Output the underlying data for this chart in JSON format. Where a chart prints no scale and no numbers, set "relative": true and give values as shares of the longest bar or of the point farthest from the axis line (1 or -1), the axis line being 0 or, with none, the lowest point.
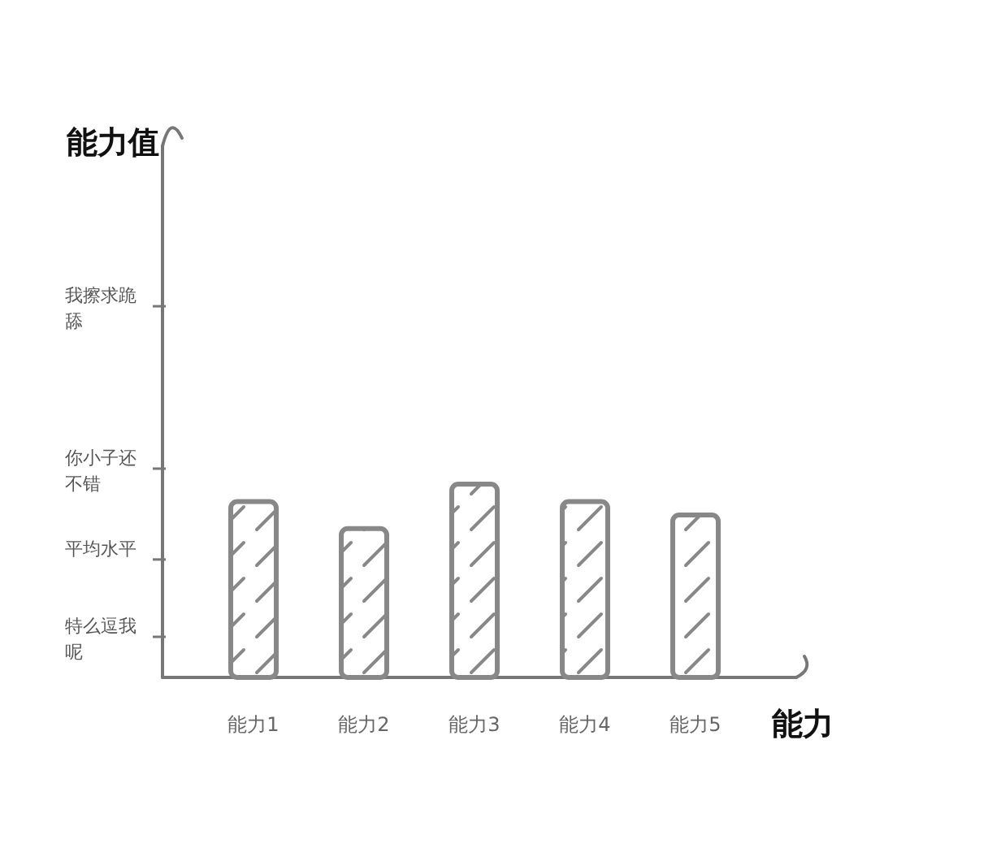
{
  "chart_data": {
    "type": "bar",
    "relative": true,
    "xlabel": "能力",
    "annotations": [
      "能力值"
    ],
    "categories": [
      "能力1",
      "能力2",
      "能力3",
      "能力4",
      "能力5"
    ],
    "values": [
      0.91,
      0.77,
      1,
      0.91,
      0.84
    ],
    "color": "#888888",
    "ref_lines": [
      {
        "axis": "y",
        "value": 0.21,
        "label": "特么逗我呢"
      },
      {
        "axis": "y",
        "value": 0.61,
        "label": "平均水平"
      },
      {
        "axis": "y",
        "value": 1.08,
        "label": "你小子还不错"
      },
      {
        "axis": "y",
        "value": 1.92,
        "label": "我擦求跪舔"
      }
    ]
  }
}
